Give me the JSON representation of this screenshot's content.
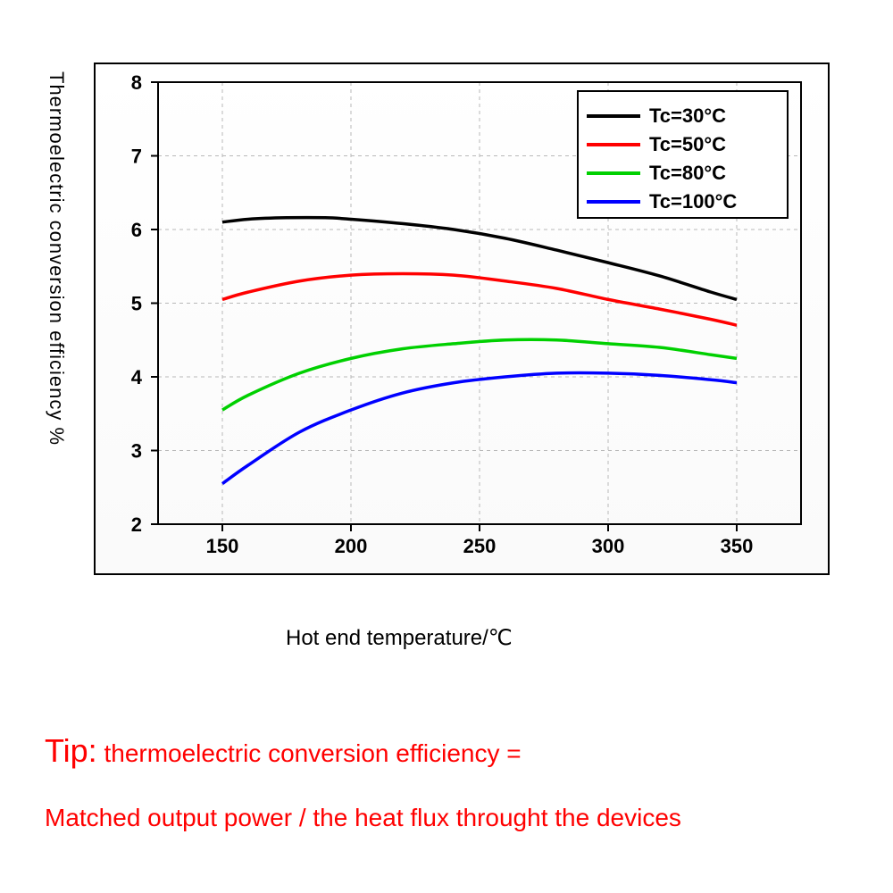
{
  "chart": {
    "type": "line",
    "background_color": "#ffffff",
    "grid_color": "#b8b8b8",
    "axis_color": "#000000",
    "xlabel": "Hot end temperature/℃",
    "ylabel": "Thermoelectric conversion efficiency %",
    "xlabel_fontsize": 24,
    "ylabel_fontsize": 22,
    "tick_fontsize": 22,
    "tick_fontweight": "bold",
    "line_width": 3.5,
    "xlim": [
      125,
      375
    ],
    "ylim": [
      2,
      8
    ],
    "xticks": [
      150,
      200,
      250,
      300,
      350
    ],
    "yticks": [
      2,
      3,
      4,
      5,
      6,
      7,
      8
    ],
    "grid_dash": "4 4",
    "legend": {
      "position": "top-right",
      "box_stroke": "#000000",
      "box_fill": "#ffffff",
      "fontsize": 22,
      "items": [
        {
          "label": "Tc=30°C",
          "color": "#000000"
        },
        {
          "label": "Tc=50°C",
          "color": "#ff0000"
        },
        {
          "label": "Tc=80°C",
          "color": "#00d000"
        },
        {
          "label": "Tc=100°C",
          "color": "#0000ff"
        }
      ]
    },
    "series": [
      {
        "name": "Tc=30°C",
        "color": "#000000",
        "x": [
          150,
          160,
          175,
          190,
          200,
          220,
          240,
          260,
          280,
          300,
          320,
          340,
          350
        ],
        "y": [
          6.1,
          6.14,
          6.16,
          6.16,
          6.14,
          6.08,
          6.0,
          5.88,
          5.72,
          5.55,
          5.37,
          5.15,
          5.05
        ]
      },
      {
        "name": "Tc=50°C",
        "color": "#ff0000",
        "x": [
          150,
          160,
          180,
          200,
          220,
          240,
          260,
          280,
          300,
          320,
          340,
          350
        ],
        "y": [
          5.05,
          5.15,
          5.3,
          5.38,
          5.4,
          5.38,
          5.3,
          5.2,
          5.05,
          4.92,
          4.78,
          4.7
        ]
      },
      {
        "name": "Tc=80°C",
        "color": "#00d000",
        "x": [
          150,
          160,
          180,
          200,
          220,
          240,
          260,
          280,
          300,
          320,
          340,
          350
        ],
        "y": [
          3.55,
          3.75,
          4.05,
          4.25,
          4.38,
          4.45,
          4.5,
          4.5,
          4.45,
          4.4,
          4.3,
          4.25
        ]
      },
      {
        "name": "Tc=100°C",
        "color": "#0000ff",
        "x": [
          150,
          160,
          180,
          200,
          220,
          240,
          260,
          280,
          300,
          320,
          340,
          350
        ],
        "y": [
          2.55,
          2.8,
          3.25,
          3.55,
          3.78,
          3.92,
          4.0,
          4.05,
          4.05,
          4.02,
          3.96,
          3.92
        ]
      }
    ]
  },
  "tip": {
    "color": "#ff0000",
    "prefix": "Tip:",
    "line1_rest": " thermoelectric conversion efficiency =",
    "line2": "Matched output power / the heat flux throught the devices",
    "prefix_fontsize": 36,
    "rest_fontsize": 28
  }
}
